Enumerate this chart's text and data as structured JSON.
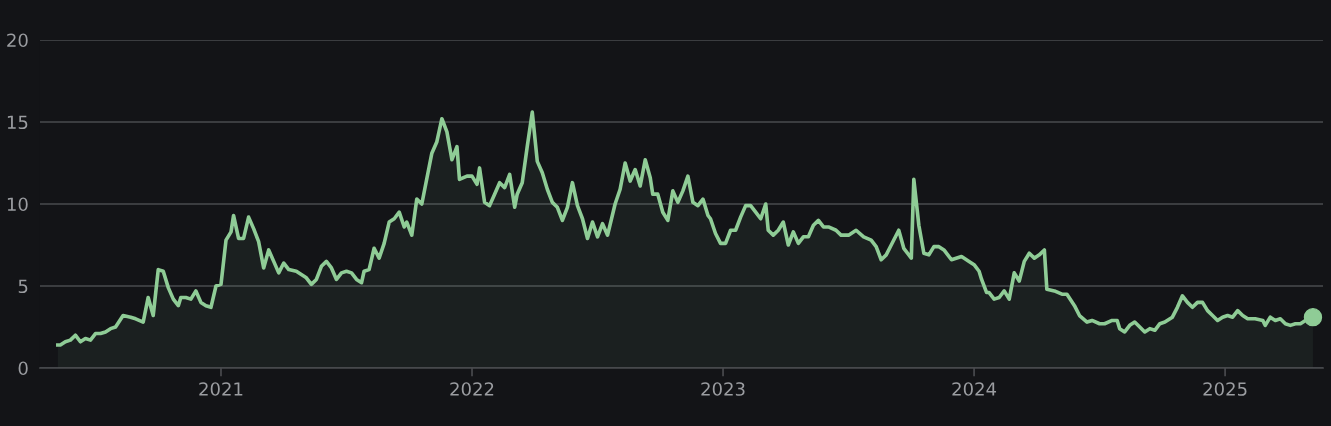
{
  "chart_data": {
    "type": "area",
    "xlim": [
      2020.279,
      2025.39
    ],
    "xticks": [
      2021,
      2022,
      2023,
      2024,
      2025
    ],
    "ylim": [
      0,
      20
    ],
    "yticks": [
      0,
      5,
      10,
      15,
      20
    ],
    "grid": "y",
    "series": [
      {
        "color": "#8fcc96",
        "x": [
          2020.35,
          2020.36,
          2020.38,
          2020.4,
          2020.42,
          2020.44,
          2020.46,
          2020.48,
          2020.5,
          2020.52,
          2020.54,
          2020.56,
          2020.58,
          2020.61,
          2020.64,
          2020.66,
          2020.69,
          2020.71,
          2020.73,
          2020.75,
          2020.77,
          2020.79,
          2020.81,
          2020.83,
          2020.84,
          2020.86,
          2020.88,
          2020.9,
          2020.92,
          2020.94,
          2020.96,
          2020.98,
          2021.0,
          2021.02,
          2021.04,
          2021.05,
          2021.07,
          2021.09,
          2021.11,
          2021.13,
          2021.15,
          2021.17,
          2021.19,
          2021.21,
          2021.23,
          2021.25,
          2021.27,
          2021.3,
          2021.32,
          2021.34,
          2021.36,
          2021.38,
          2021.4,
          2021.42,
          2021.44,
          2021.46,
          2021.48,
          2021.5,
          2021.52,
          2021.54,
          2021.56,
          2021.57,
          2021.59,
          2021.61,
          2021.63,
          2021.65,
          2021.67,
          2021.69,
          2021.71,
          2021.73,
          2021.74,
          2021.76,
          2021.78,
          2021.8,
          2021.84,
          2021.86,
          2021.88,
          2021.9,
          2021.92,
          2021.94,
          2021.95,
          2021.98,
          2022.0,
          2022.02,
          2022.03,
          2022.05,
          2022.07,
          2022.09,
          2022.11,
          2022.13,
          2022.15,
          2022.17,
          2022.18,
          2022.2,
          2022.22,
          2022.24,
          2022.26,
          2022.28,
          2022.3,
          2022.32,
          2022.34,
          2022.36,
          2022.38,
          2022.4,
          2022.42,
          2022.44,
          2022.46,
          2022.48,
          2022.5,
          2022.52,
          2022.54,
          2022.57,
          2022.59,
          2022.61,
          2022.63,
          2022.65,
          2022.67,
          2022.69,
          2022.71,
          2022.72,
          2022.74,
          2022.76,
          2022.78,
          2022.8,
          2022.82,
          2022.84,
          2022.86,
          2022.88,
          2022.9,
          2022.92,
          2022.94,
          2022.95,
          2022.97,
          2022.99,
          2023.01,
          2023.03,
          2023.05,
          2023.07,
          2023.09,
          2023.11,
          2023.13,
          2023.15,
          2023.17,
          2023.18,
          2023.2,
          2023.22,
          2023.24,
          2023.26,
          2023.28,
          2023.3,
          2023.32,
          2023.34,
          2023.36,
          2023.38,
          2023.4,
          2023.42,
          2023.45,
          2023.47,
          2023.5,
          2023.53,
          2023.56,
          2023.59,
          2023.61,
          2023.63,
          2023.65,
          2023.67,
          2023.7,
          2023.72,
          2023.75,
          2023.76,
          2023.78,
          2023.8,
          2023.82,
          2023.84,
          2023.86,
          2023.88,
          2023.91,
          2023.95,
          2023.98,
          2024.0,
          2024.02,
          2024.03,
          2024.05,
          2024.06,
          2024.08,
          2024.1,
          2024.12,
          2024.14,
          2024.16,
          2024.18,
          2024.2,
          2024.22,
          2024.24,
          2024.26,
          2024.28,
          2024.29,
          2024.32,
          2024.35,
          2024.37,
          2024.4,
          2024.42,
          2024.45,
          2024.47,
          2024.5,
          2024.52,
          2024.55,
          2024.57,
          2024.58,
          2024.6,
          2024.62,
          2024.64,
          2024.66,
          2024.68,
          2024.7,
          2024.72,
          2024.74,
          2024.76,
          2024.79,
          2024.81,
          2024.83,
          2024.85,
          2024.87,
          2024.89,
          2024.91,
          2024.93,
          2024.95,
          2024.97,
          2024.99,
          2025.01,
          2025.03,
          2025.05,
          2025.07,
          2025.09,
          2025.12,
          2025.15,
          2025.16,
          2025.18,
          2025.2,
          2025.22,
          2025.24,
          2025.26,
          2025.28,
          2025.3,
          2025.32,
          2025.35
        ],
        "values": [
          1.4,
          1.4,
          1.6,
          1.7,
          2.0,
          1.6,
          1.8,
          1.7,
          2.1,
          2.1,
          2.2,
          2.4,
          2.5,
          3.2,
          3.1,
          3.0,
          2.8,
          4.3,
          3.2,
          6.0,
          5.9,
          4.9,
          4.2,
          3.8,
          4.3,
          4.3,
          4.2,
          4.7,
          4.0,
          3.8,
          3.7,
          5.0,
          5.1,
          7.8,
          8.3,
          9.3,
          7.9,
          7.9,
          9.2,
          8.5,
          7.7,
          6.1,
          7.2,
          6.5,
          5.8,
          6.4,
          6.0,
          5.9,
          5.7,
          5.5,
          5.1,
          5.4,
          6.2,
          6.5,
          6.1,
          5.4,
          5.8,
          5.9,
          5.8,
          5.4,
          5.2,
          5.9,
          6.0,
          7.3,
          6.7,
          7.6,
          8.9,
          9.1,
          9.5,
          8.6,
          8.9,
          8.1,
          10.3,
          10.0,
          13.1,
          13.8,
          15.2,
          14.4,
          12.7,
          13.5,
          11.5,
          11.7,
          11.7,
          11.2,
          12.2,
          10.1,
          9.9,
          10.6,
          11.3,
          11.0,
          11.8,
          9.8,
          10.6,
          11.3,
          13.5,
          15.6,
          12.6,
          11.9,
          10.9,
          10.1,
          9.8,
          9.0,
          9.8,
          11.3,
          9.9,
          9.1,
          7.9,
          8.9,
          8.0,
          8.8,
          8.1,
          10.0,
          10.9,
          12.5,
          11.4,
          12.1,
          11.1,
          12.7,
          11.6,
          10.6,
          10.6,
          9.5,
          9.0,
          10.8,
          10.1,
          10.8,
          11.7,
          10.1,
          9.9,
          10.3,
          9.3,
          9.1,
          8.2,
          7.6,
          7.6,
          8.4,
          8.4,
          9.2,
          9.9,
          9.9,
          9.5,
          9.1,
          10.0,
          8.4,
          8.1,
          8.4,
          8.9,
          7.5,
          8.3,
          7.6,
          8.0,
          8.0,
          8.7,
          9.0,
          8.6,
          8.6,
          8.4,
          8.1,
          8.1,
          8.4,
          8.0,
          7.8,
          7.4,
          6.6,
          6.9,
          7.5,
          8.4,
          7.3,
          6.7,
          11.5,
          8.7,
          7.0,
          6.9,
          7.4,
          7.4,
          7.2,
          6.6,
          6.8,
          6.5,
          6.3,
          5.9,
          5.4,
          4.6,
          4.6,
          4.2,
          4.3,
          4.7,
          4.2,
          5.8,
          5.3,
          6.5,
          7.0,
          6.7,
          6.9,
          7.2,
          4.8,
          4.7,
          4.5,
          4.5,
          3.8,
          3.2,
          2.8,
          2.9,
          2.7,
          2.7,
          2.9,
          2.9,
          2.4,
          2.2,
          2.6,
          2.8,
          2.5,
          2.2,
          2.4,
          2.3,
          2.7,
          2.8,
          3.1,
          3.7,
          4.4,
          4.0,
          3.7,
          4.0,
          4.0,
          3.5,
          3.2,
          2.9,
          3.1,
          3.2,
          3.1,
          3.5,
          3.2,
          3.0,
          3.0,
          2.9,
          2.6,
          3.1,
          2.9,
          3.0,
          2.7,
          2.6,
          2.7,
          2.7,
          2.9,
          3.1
        ]
      },
      {
        "type": "scatter",
        "color": "#8fcc96",
        "marker": "circle",
        "x": [
          2025.35
        ],
        "values": [
          3.1
        ]
      }
    ]
  }
}
